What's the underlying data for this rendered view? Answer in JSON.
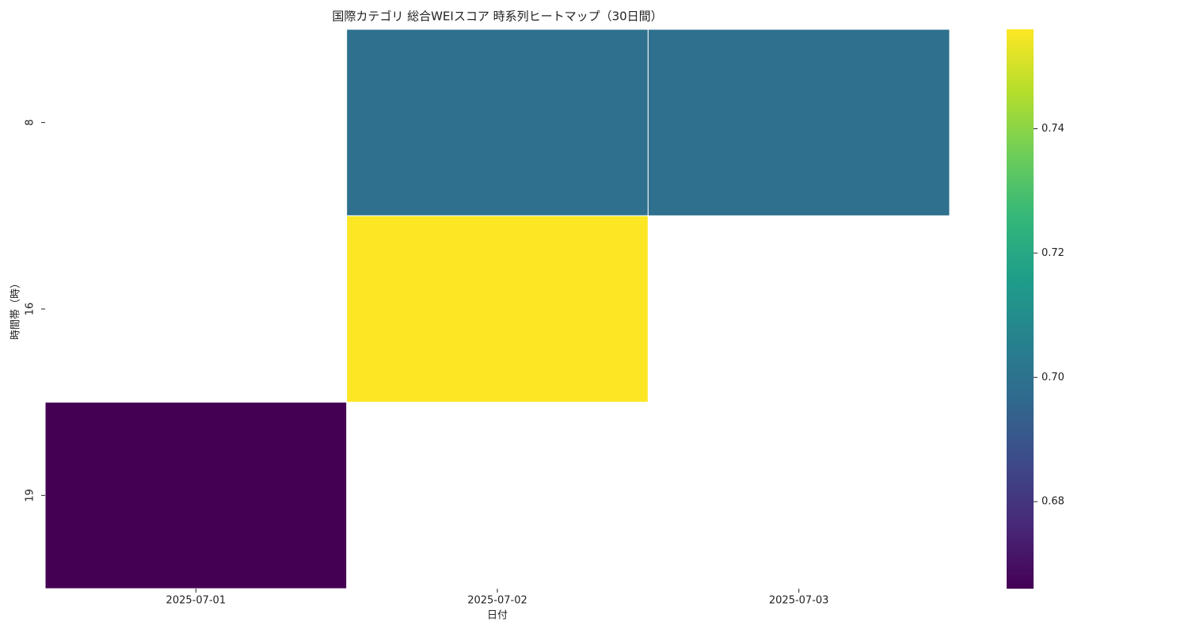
{
  "chart_data": {
    "type": "heatmap",
    "title": "国際カテゴリ 総合WEIスコア 時系列ヒートマップ（30日間）",
    "x_label": "日付",
    "y_label": "時間帯（時）",
    "categories": [
      "2025-07-01",
      "2025-07-02",
      "2025-07-03"
    ],
    "rows": [
      8,
      16,
      19
    ],
    "values": [
      [
        null,
        0.699,
        0.699
      ],
      [
        null,
        0.756,
        null
      ],
      [
        0.666,
        null,
        null
      ]
    ],
    "colormap": "viridis",
    "colorbar_lim": [
      0.666,
      0.756
    ],
    "colorbar_ticks": [
      0.68,
      {
        "value": 0.7,
        "label": "0.70"
      },
      0.72,
      0.74
    ]
  }
}
